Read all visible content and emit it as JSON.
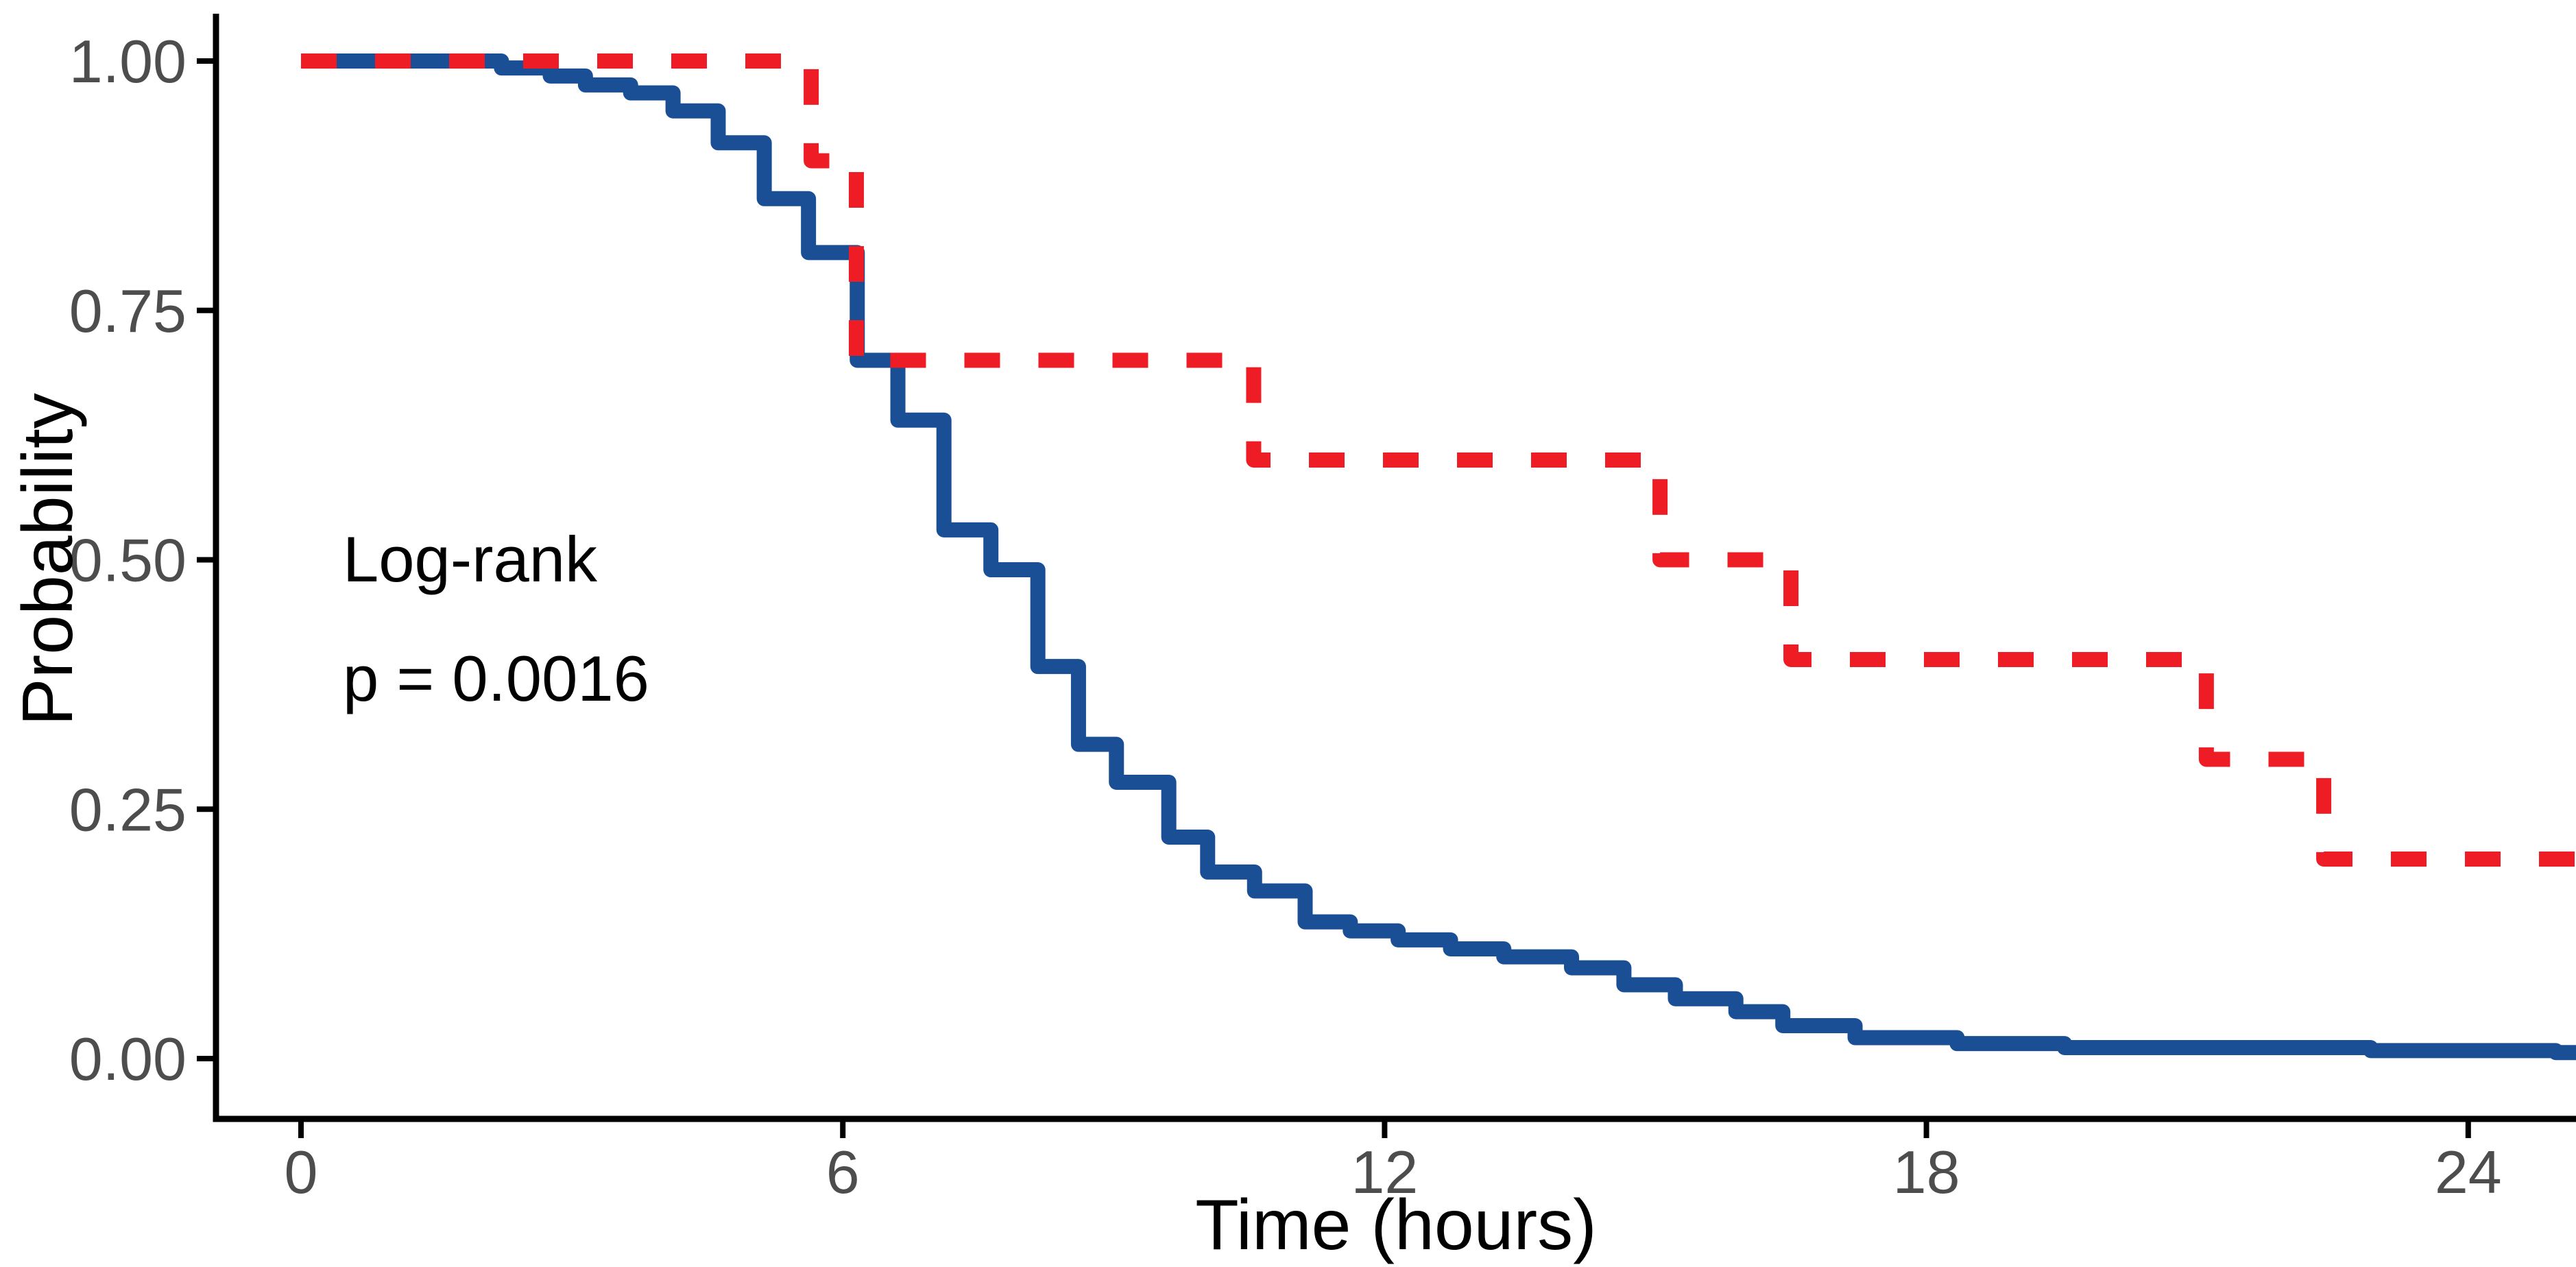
{
  "chart_data": {
    "type": "line",
    "subtype": "kaplan-meier-step",
    "title": "",
    "xlabel": "Time (hours)",
    "ylabel": "Probability",
    "xlim": [
      0,
      25.2
    ],
    "ylim": [
      0,
      1
    ],
    "grid": "off",
    "legend": "none",
    "x_ticks": [
      0,
      6,
      12,
      18,
      24
    ],
    "x_tick_labels": [
      "0",
      "6",
      "12",
      "18",
      "24"
    ],
    "y_ticks": [
      0,
      0.25,
      0.5,
      0.75,
      1
    ],
    "y_tick_labels": [
      "0.00",
      "0.25",
      "0.50",
      "0.75",
      "1.00"
    ],
    "annotation": {
      "line1": "Log-rank",
      "line2": "p = 0.0016",
      "x_data": 0.45,
      "y_data_line1": 0.49,
      "y_data_line2": 0.36
    },
    "axis_color": "#000000",
    "tick_label_color": "#4d4d4d",
    "series": [
      {
        "name": "group-blue-solid",
        "style": "solid",
        "color": "#1a4f96",
        "stroke_width": 22,
        "x_end": 25.2,
        "points": [
          [
            0,
            1.0
          ],
          [
            2.22,
            0.993
          ],
          [
            2.76,
            0.985
          ],
          [
            3.15,
            0.976
          ],
          [
            3.65,
            0.968
          ],
          [
            4.12,
            0.95
          ],
          [
            4.62,
            0.918
          ],
          [
            5.13,
            0.862
          ],
          [
            5.62,
            0.808
          ],
          [
            6.16,
            0.7
          ],
          [
            6.61,
            0.64
          ],
          [
            7.12,
            0.53
          ],
          [
            7.64,
            0.49
          ],
          [
            8.16,
            0.393
          ],
          [
            8.61,
            0.315
          ],
          [
            9.03,
            0.277
          ],
          [
            9.61,
            0.222
          ],
          [
            10.04,
            0.187
          ],
          [
            10.56,
            0.168
          ],
          [
            11.12,
            0.137
          ],
          [
            11.62,
            0.128
          ],
          [
            12.15,
            0.119
          ],
          [
            12.73,
            0.11
          ],
          [
            13.32,
            0.102
          ],
          [
            14.07,
            0.091
          ],
          [
            14.65,
            0.074
          ],
          [
            15.22,
            0.06
          ],
          [
            15.89,
            0.047
          ],
          [
            16.41,
            0.033
          ],
          [
            17.21,
            0.021
          ],
          [
            18.34,
            0.015
          ],
          [
            19.53,
            0.011
          ],
          [
            22.92,
            0.008
          ],
          [
            24.97,
            0.006
          ]
        ]
      },
      {
        "name": "group-red-dashed",
        "style": "dashed",
        "dash_pattern": [
          52,
          56
        ],
        "color": "#ee1c25",
        "stroke_width": 22,
        "x_end": 25.2,
        "points": [
          [
            0,
            1.0
          ],
          [
            5.65,
            0.9
          ],
          [
            6.15,
            0.7
          ],
          [
            10.55,
            0.6
          ],
          [
            15.05,
            0.5
          ],
          [
            16.5,
            0.4
          ],
          [
            21.1,
            0.3
          ],
          [
            22.4,
            0.2
          ]
        ]
      }
    ]
  }
}
